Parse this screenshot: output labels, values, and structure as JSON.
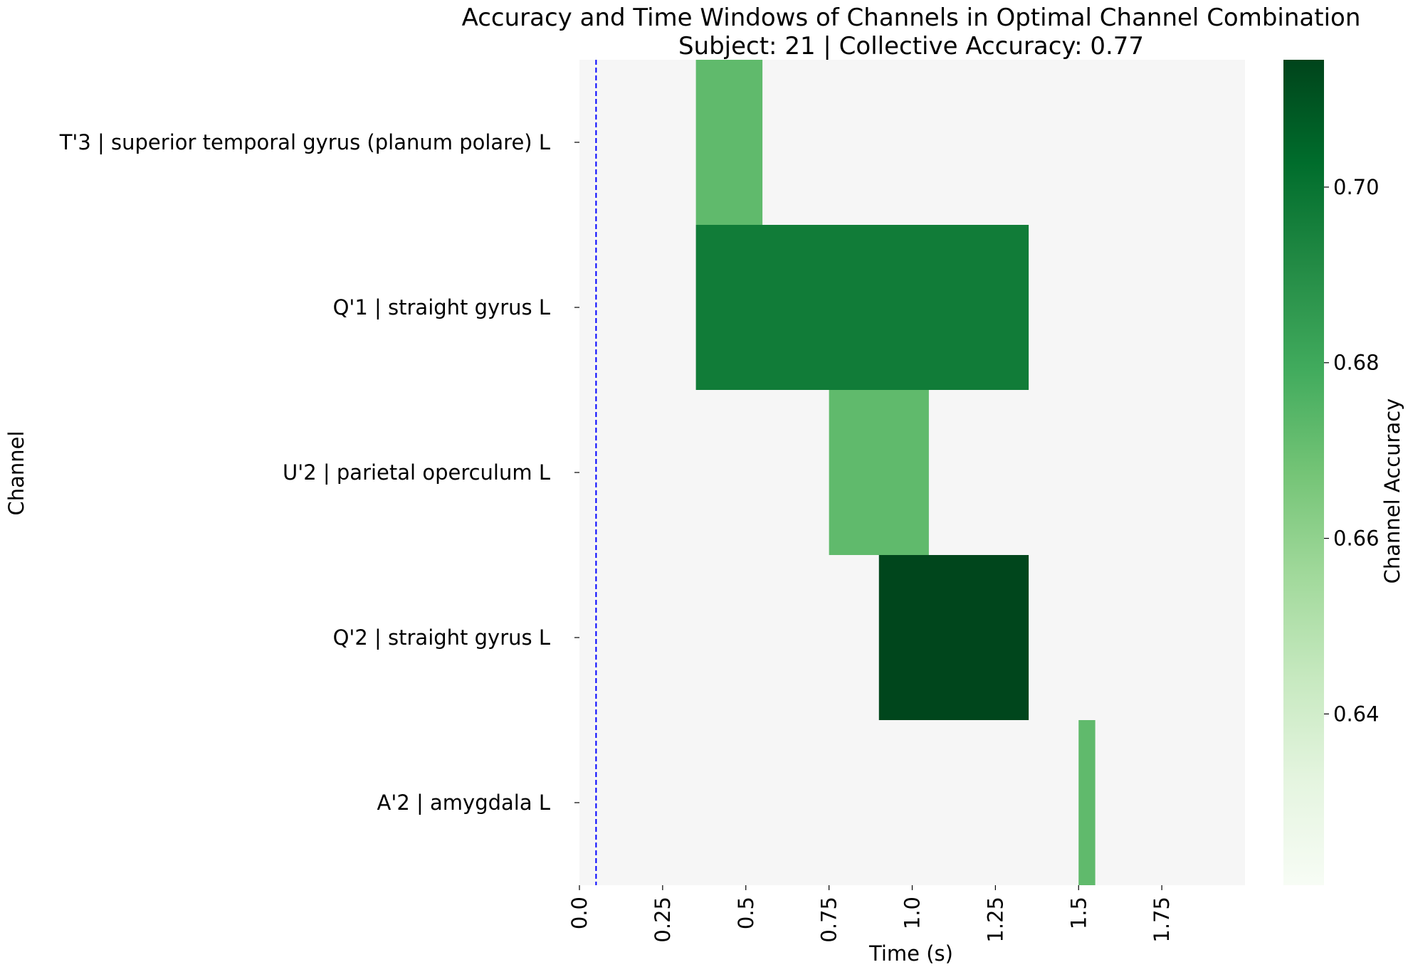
{
  "chart_data": {
    "type": "heatmap",
    "title": "Accuracy and Time Windows of Channels in Optimal Channel Combination",
    "subtitle": "Subject: 21 | Collective Accuracy: 0.77",
    "xlabel": "Time (s)",
    "ylabel": "Channel",
    "xlim": [
      0,
      2.0
    ],
    "xticks": [
      "0.0",
      "0.25",
      "0.5",
      "0.75",
      "1.0",
      "1.25",
      "1.5",
      "1.75"
    ],
    "xtick_values": [
      0,
      0.25,
      0.5,
      0.75,
      1.0,
      1.25,
      1.5,
      1.75
    ],
    "channels": [
      "T'3 | superior temporal gyrus (planum polare) L",
      "Q'1 | straight gyrus L",
      "U'2 | parietal operculum L",
      "Q'2 | straight gyrus L",
      "A'2 | amygdala L"
    ],
    "windows": [
      {
        "channel": 0,
        "start": 0.35,
        "end": 0.55,
        "accuracy": 0.672
      },
      {
        "channel": 1,
        "start": 0.35,
        "end": 1.35,
        "accuracy": 0.697
      },
      {
        "channel": 2,
        "start": 0.75,
        "end": 1.05,
        "accuracy": 0.672
      },
      {
        "channel": 3,
        "start": 0.9,
        "end": 1.35,
        "accuracy": 0.714
      },
      {
        "channel": 4,
        "start": 1.5,
        "end": 1.55,
        "accuracy": 0.672
      }
    ],
    "marker_line": {
      "x": 0.05,
      "color": "#0000ff",
      "style": "dashed"
    },
    "colorbar": {
      "label": "Channel Accuracy",
      "range": [
        0.6205,
        0.7145
      ],
      "ticks": [
        "0.64",
        "0.66",
        "0.68",
        "0.70"
      ],
      "tick_values": [
        0.64,
        0.66,
        0.68,
        0.7
      ],
      "colormap": "Greens"
    },
    "background_color": "#f6f6f6",
    "grid": false,
    "legend": "none"
  }
}
